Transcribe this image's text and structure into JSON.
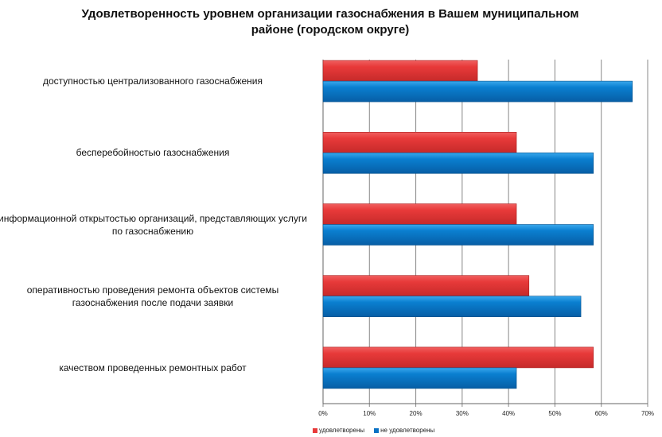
{
  "chart_data": {
    "type": "bar",
    "orientation": "horizontal",
    "title": "Удовлетворенность уровнем организации газоснабжения в Вашем муниципальном районе (городском округе)",
    "title_lines": [
      "Удовлетворенность уровнем организации газоснабжения в Вашем муниципальном",
      "районе (городском округе)"
    ],
    "categories": [
      [
        "доступностью централизованного газоснабжения"
      ],
      [
        "бесперебойностью газоснабжения"
      ],
      [
        "информационной открытостью организаций, представляющих услуги",
        "по газоснабжению"
      ],
      [
        "оперативностью проведения ремонта объектов системы",
        "газоснабжения после подачи заявки"
      ],
      [
        "качеством проведенных ремонтных работ"
      ]
    ],
    "series": [
      {
        "name": "удовлетворены",
        "color": "#e83a3a",
        "values": [
          33.3,
          41.7,
          41.7,
          44.4,
          58.3
        ]
      },
      {
        "name": "не удовлетворены",
        "color": "#0a72c4",
        "values": [
          66.7,
          58.3,
          58.3,
          55.6,
          41.7
        ]
      }
    ],
    "xlim": [
      0,
      70
    ],
    "xticks": [
      "0%",
      "10%",
      "20%",
      "30%",
      "40%",
      "50%",
      "60%",
      "70%"
    ],
    "grid": true,
    "legend": "bottom"
  }
}
